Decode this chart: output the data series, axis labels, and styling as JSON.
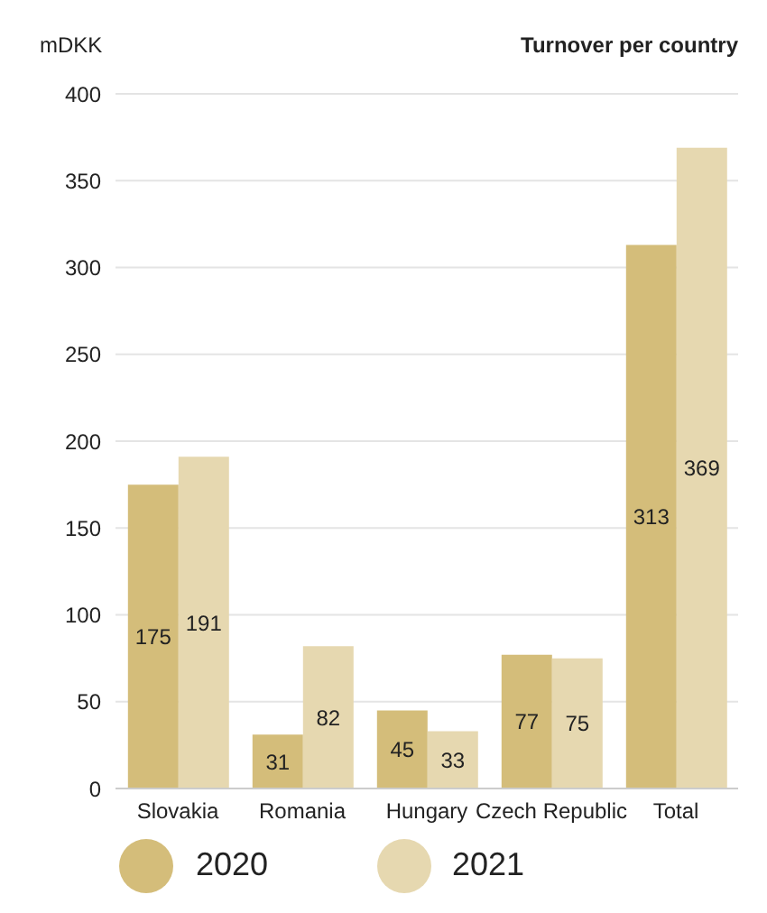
{
  "chart_data": {
    "type": "bar",
    "title": "Turnover per country",
    "ylabel": "mDKK",
    "categories": [
      "Slovakia",
      "Romania",
      "Hungary",
      "Czech Republic",
      "Total"
    ],
    "series": [
      {
        "name": "2020",
        "color": "#d4bd7a",
        "values": [
          175,
          31,
          45,
          77,
          313
        ]
      },
      {
        "name": "2021",
        "color": "#e6d8b0",
        "values": [
          191,
          82,
          33,
          75,
          369
        ]
      }
    ],
    "ylim": [
      0,
      400
    ],
    "yticks": [
      0,
      50,
      100,
      150,
      200,
      250,
      300,
      350,
      400
    ],
    "grid": "y",
    "legend": "bottom",
    "data_labels": true
  }
}
